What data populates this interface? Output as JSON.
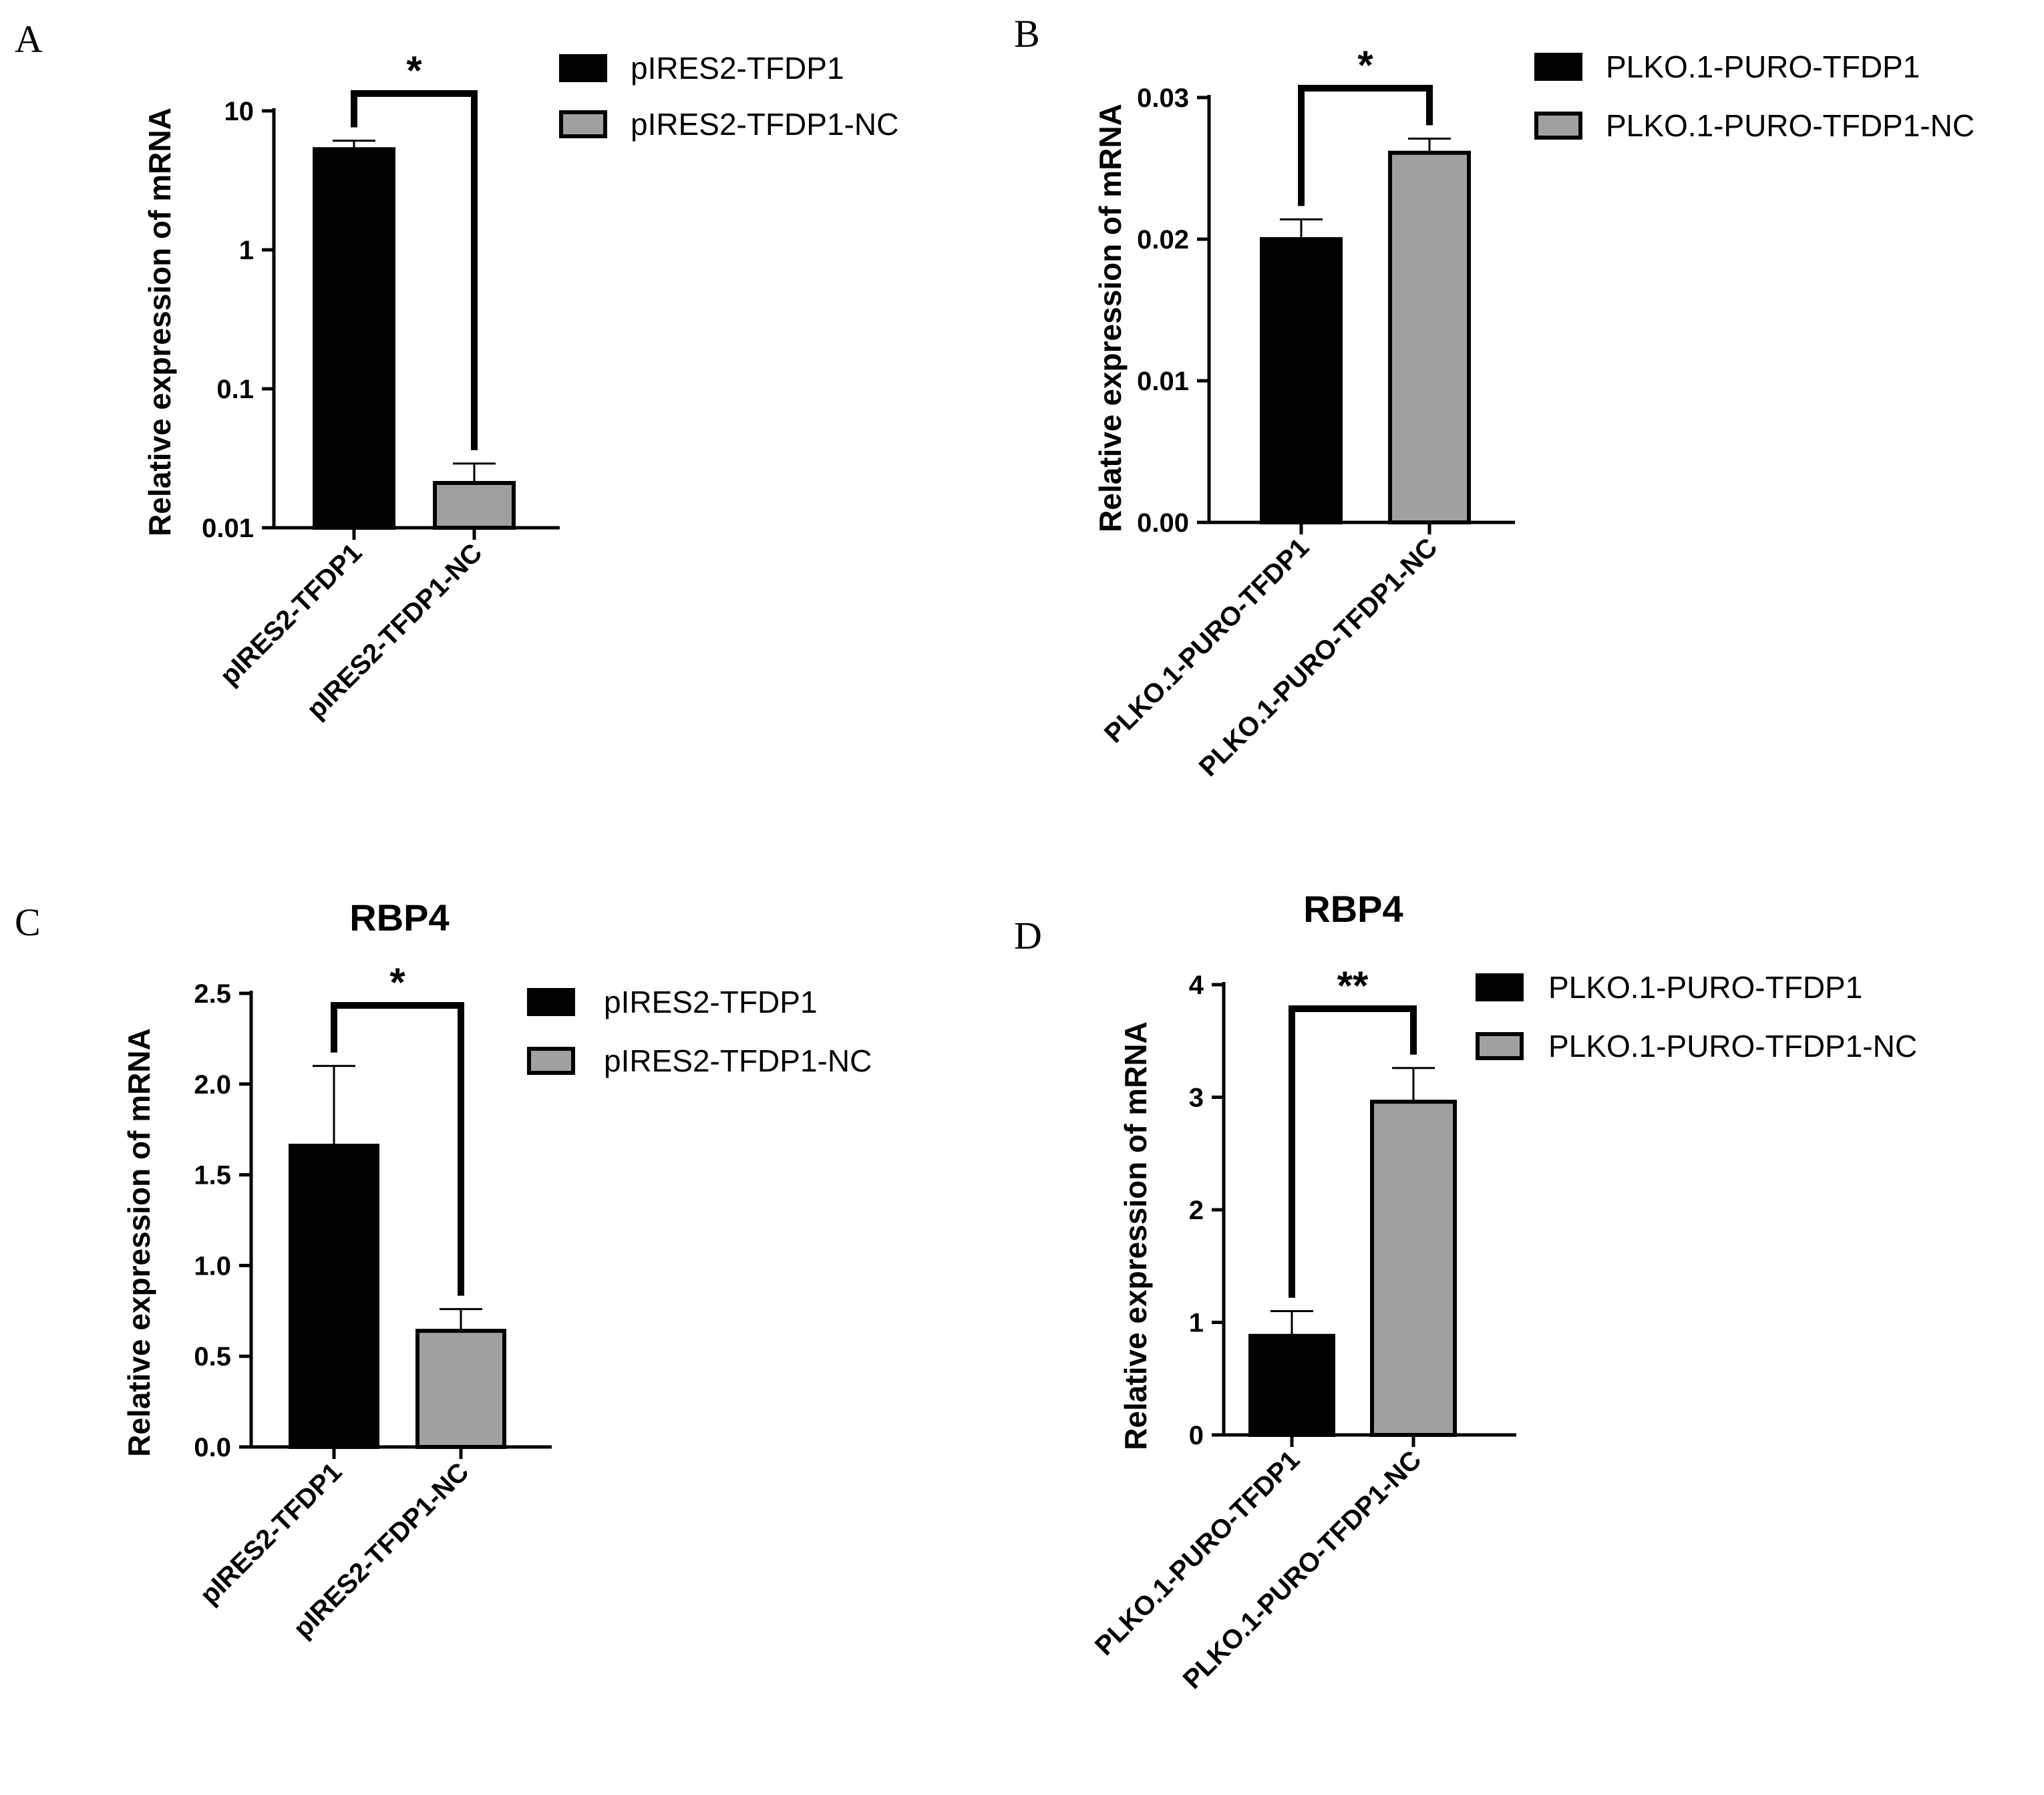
{
  "colors": {
    "series_a": "#000000",
    "series_b": "#a0a0a0",
    "outline": "#000000"
  },
  "chart_data": [
    {
      "panel": "A",
      "type": "bar",
      "title": "",
      "ylabel": "Relative expression of mRNA",
      "yscale": "log",
      "ylim": [
        0.01,
        10
      ],
      "yticks": [
        0.01,
        0.1,
        1,
        10
      ],
      "ytick_labels": [
        "0.01",
        "0.1",
        "1",
        "10"
      ],
      "categories": [
        "pIRES2-TFDP1",
        "pIRES2-TFDP1-NC"
      ],
      "values": [
        5.3,
        0.021
      ],
      "errors": [
        0.8,
        0.008
      ],
      "significance": "*",
      "legend": [
        "pIRES2-TFDP1",
        "pIRES2-TFDP1-NC"
      ]
    },
    {
      "panel": "B",
      "type": "bar",
      "title": "",
      "ylabel": "Relative expression of mRNA",
      "yscale": "linear",
      "ylim": [
        0,
        0.03
      ],
      "yticks": [
        0,
        0.01,
        0.02,
        0.03
      ],
      "ytick_labels": [
        "0.00",
        "0.01",
        "0.02",
        "0.03"
      ],
      "categories": [
        "PLKO.1-PURO-TFDP1",
        "PLKO.1-PURO-TFDP1-NC"
      ],
      "values": [
        0.02,
        0.0261
      ],
      "errors": [
        0.0014,
        0.001
      ],
      "significance": "*",
      "legend": [
        "PLKO.1-PURO-TFDP1",
        "PLKO.1-PURO-TFDP1-NC"
      ]
    },
    {
      "panel": "C",
      "type": "bar",
      "title": "RBP4",
      "ylabel": "Relative expression of mRNA",
      "yscale": "linear",
      "ylim": [
        0,
        2.5
      ],
      "yticks": [
        0,
        0.5,
        1.0,
        1.5,
        2.0,
        2.5
      ],
      "ytick_labels": [
        "0.0",
        "0.5",
        "1.0",
        "1.5",
        "2.0",
        "2.5"
      ],
      "categories": [
        "pIRES2-TFDP1",
        "pIRES2-TFDP1-NC"
      ],
      "values": [
        1.66,
        0.64
      ],
      "errors": [
        0.44,
        0.12
      ],
      "significance": "*",
      "legend": [
        "pIRES2-TFDP1",
        "pIRES2-TFDP1-NC"
      ]
    },
    {
      "panel": "D",
      "type": "bar",
      "title": "RBP4",
      "ylabel": "Relative expression of mRNA",
      "yscale": "linear",
      "ylim": [
        0,
        4
      ],
      "yticks": [
        0,
        1,
        2,
        3,
        4
      ],
      "ytick_labels": [
        "0",
        "1",
        "2",
        "3",
        "4"
      ],
      "categories": [
        "PLKO.1-PURO-TFDP1",
        "PLKO.1-PURO-TFDP1-NC"
      ],
      "values": [
        0.88,
        2.96
      ],
      "errors": [
        0.22,
        0.3
      ],
      "significance": "**",
      "legend": [
        "PLKO.1-PURO-TFDP1",
        "PLKO.1-PURO-TFDP1-NC"
      ]
    }
  ]
}
